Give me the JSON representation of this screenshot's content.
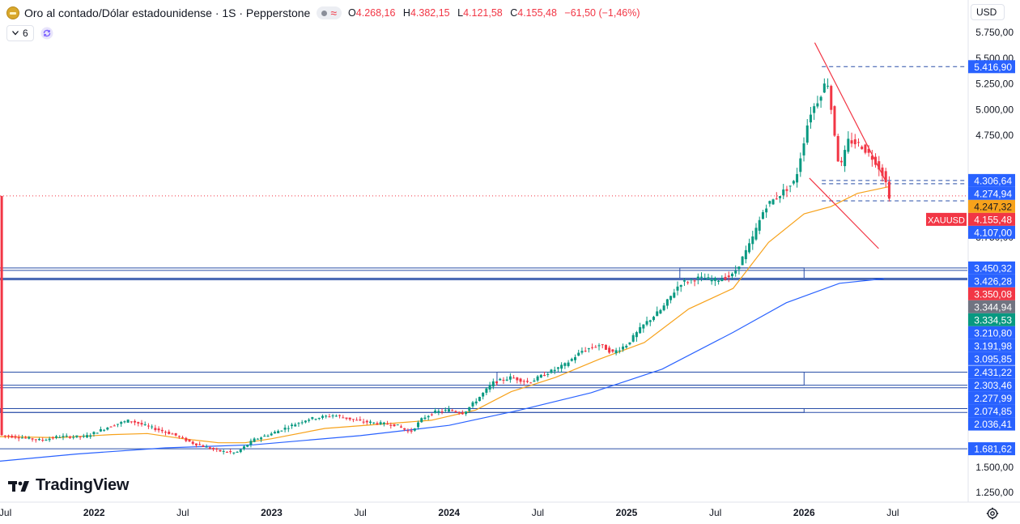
{
  "header": {
    "title": "Oro al contado/Dólar estadounidense · 1S · Pepperstone",
    "market_status_icon": "market-closed-dot-icon",
    "ohlc": {
      "open_label": "O",
      "open_value": "4.268,16",
      "high_label": "H",
      "high_value": "4.382,15",
      "low_label": "L",
      "low_value": "4.121,58",
      "close_label": "C",
      "close_value": "4.155,48",
      "change": "−61,50 (−1,46%)"
    }
  },
  "indicators": {
    "count": "6"
  },
  "currency": "USD",
  "logo_text": "TradingView",
  "colors": {
    "up": "#089981",
    "down": "#f23645",
    "ma_fast": "#f7a21b",
    "ma_slow": "#2962ff",
    "level_line": "#2a4fa8",
    "trend_line": "#f23645",
    "accent": "#2962ff"
  },
  "chart_data": {
    "type": "candlestick",
    "symbol": "XAUUSD",
    "interval": "1S",
    "y_axis": {
      "ylim": [
        1050,
        5950
      ],
      "ticks": [
        "5.750,00",
        "5.500,00",
        "5.250,00",
        "5.000,00",
        "4.750,00",
        "3.750,00",
        "1.500,00",
        "1.250,00"
      ],
      "tick_values": [
        5750,
        5500,
        5250,
        5000,
        4750,
        3750,
        1500,
        1250
      ]
    },
    "x_axis": {
      "labels": [
        "Jul",
        "2022",
        "Jul",
        "2023",
        "Jul",
        "2024",
        "Jul",
        "2025",
        "Jul",
        "2026",
        "Jul"
      ],
      "label_positions": [
        2021.5,
        2022.0,
        2022.5,
        2023.0,
        2023.5,
        2024.0,
        2024.5,
        2025.0,
        2025.5,
        2026.0,
        2026.5
      ],
      "range": [
        2021.47,
        2026.92
      ]
    },
    "price_labels": [
      {
        "text": "5.416,90",
        "value": 5416.9,
        "style": "blue"
      },
      {
        "text": "4.306,64",
        "value": 4306.64,
        "style": "blue"
      },
      {
        "text": "4.274,94",
        "value": 4274.94,
        "style": "blue"
      },
      {
        "text": "4.247,32",
        "value": 4247.32,
        "style": "orange"
      },
      {
        "text": "4.155,48",
        "value": 4155.48,
        "style": "red",
        "tag": "XAUUSD"
      },
      {
        "text": "4.107,00",
        "value": 4107.0,
        "style": "blue"
      },
      {
        "text": "3.450,32",
        "value": 3450.32,
        "style": "blue"
      },
      {
        "text": "3.426,28",
        "value": 3426.28,
        "style": "blue"
      },
      {
        "text": "3.350,08",
        "value": 3350.08,
        "style": "red"
      },
      {
        "text": "3.344,94",
        "value": 3344.94,
        "style": "gray"
      },
      {
        "text": "3.334,53",
        "value": 3334.53,
        "style": "green"
      },
      {
        "text": "3.210,80",
        "value": 3210.8,
        "style": "blue"
      },
      {
        "text": "3.191,98",
        "value": 3191.98,
        "style": "blue"
      },
      {
        "text": "3.095,85",
        "value": 3095.85,
        "style": "blue"
      },
      {
        "text": "2.431,22",
        "value": 2431.22,
        "style": "blue"
      },
      {
        "text": "2.303,46",
        "value": 2303.46,
        "style": "blue"
      },
      {
        "text": "2.277,99",
        "value": 2277.99,
        "style": "blue"
      },
      {
        "text": "2.074,85",
        "value": 2074.85,
        "style": "blue"
      },
      {
        "text": "2.036,41",
        "value": 2036.41,
        "style": "blue"
      },
      {
        "text": "1.681,62",
        "value": 1681.62,
        "style": "blue"
      }
    ],
    "series": [
      {
        "kind": "price",
        "points": [
          [
            2021.47,
            1815
          ],
          [
            2021.6,
            1790
          ],
          [
            2021.7,
            1765
          ],
          [
            2021.8,
            1800
          ],
          [
            2021.95,
            1800
          ],
          [
            2022.1,
            1910
          ],
          [
            2022.2,
            1960
          ],
          [
            2022.3,
            1900
          ],
          [
            2022.45,
            1820
          ],
          [
            2022.55,
            1740
          ],
          [
            2022.7,
            1660
          ],
          [
            2022.8,
            1640
          ],
          [
            2022.9,
            1770
          ],
          [
            2023.0,
            1830
          ],
          [
            2023.1,
            1900
          ],
          [
            2023.2,
            1970
          ],
          [
            2023.35,
            2010
          ],
          [
            2023.5,
            1950
          ],
          [
            2023.6,
            1930
          ],
          [
            2023.7,
            1915
          ],
          [
            2023.78,
            1840
          ],
          [
            2023.85,
            1980
          ],
          [
            2023.92,
            2040
          ],
          [
            2024.0,
            2060
          ],
          [
            2024.08,
            2030
          ],
          [
            2024.15,
            2150
          ],
          [
            2024.25,
            2330
          ],
          [
            2024.35,
            2380
          ],
          [
            2024.45,
            2330
          ],
          [
            2024.55,
            2420
          ],
          [
            2024.65,
            2500
          ],
          [
            2024.75,
            2640
          ],
          [
            2024.85,
            2700
          ],
          [
            2024.92,
            2620
          ],
          [
            2025.0,
            2700
          ],
          [
            2025.1,
            2900
          ],
          [
            2025.2,
            3050
          ],
          [
            2025.3,
            3300
          ],
          [
            2025.4,
            3350
          ],
          [
            2025.5,
            3330
          ],
          [
            2025.6,
            3380
          ],
          [
            2025.7,
            3700
          ],
          [
            2025.78,
            4050
          ],
          [
            2025.85,
            4150
          ],
          [
            2025.95,
            4300
          ],
          [
            2026.03,
            4950
          ],
          [
            2026.08,
            5100
          ],
          [
            2026.13,
            5300
          ],
          [
            2026.2,
            4400
          ],
          [
            2026.25,
            4700
          ],
          [
            2026.32,
            4650
          ],
          [
            2026.4,
            4500
          ],
          [
            2026.45,
            4350
          ],
          [
            2026.48,
            4155
          ]
        ]
      },
      {
        "kind": "ma_fast",
        "points": [
          [
            2021.47,
            1800
          ],
          [
            2021.8,
            1790
          ],
          [
            2022.1,
            1820
          ],
          [
            2022.3,
            1830
          ],
          [
            2022.5,
            1780
          ],
          [
            2022.7,
            1740
          ],
          [
            2022.85,
            1740
          ],
          [
            2023.0,
            1780
          ],
          [
            2023.3,
            1880
          ],
          [
            2023.6,
            1920
          ],
          [
            2023.9,
            1960
          ],
          [
            2024.15,
            2060
          ],
          [
            2024.35,
            2240
          ],
          [
            2024.6,
            2380
          ],
          [
            2024.85,
            2560
          ],
          [
            2025.1,
            2720
          ],
          [
            2025.35,
            3050
          ],
          [
            2025.6,
            3250
          ],
          [
            2025.8,
            3700
          ],
          [
            2026.0,
            3980
          ],
          [
            2026.15,
            4050
          ],
          [
            2026.3,
            4180
          ],
          [
            2026.48,
            4247
          ]
        ]
      },
      {
        "kind": "ma_slow",
        "points": [
          [
            2021.47,
            1560
          ],
          [
            2021.9,
            1630
          ],
          [
            2022.4,
            1690
          ],
          [
            2022.9,
            1720
          ],
          [
            2023.5,
            1810
          ],
          [
            2024.0,
            1910
          ],
          [
            2024.4,
            2060
          ],
          [
            2024.8,
            2230
          ],
          [
            2025.2,
            2460
          ],
          [
            2025.6,
            2820
          ],
          [
            2025.9,
            3110
          ],
          [
            2026.2,
            3300
          ],
          [
            2026.45,
            3345
          ]
        ]
      }
    ],
    "trend_lines": [
      {
        "from": [
          2026.06,
          5650
        ],
        "to": [
          2026.46,
          4300
        ]
      },
      {
        "from": [
          2026.03,
          4330
        ],
        "to": [
          2026.42,
          3640
        ]
      }
    ],
    "annotations": {
      "current_price": 4155.48,
      "horizontal_levels": [
        5416.9,
        4306.64,
        4274.94,
        4107.0,
        3450.32,
        3426.28,
        3350.08,
        3344.94,
        3334.53,
        2431.22,
        2303.46,
        2277.99,
        2074.85,
        2036.41,
        1681.62
      ],
      "zones": [
        {
          "from": 2025.3,
          "to": 2026.0,
          "top": 3450.32,
          "bottom": 3350.08
        },
        {
          "from": 2024.27,
          "to": 2026.0,
          "top": 2431.22,
          "bottom": 2303.46
        },
        {
          "from": 2021.47,
          "to": 2026.0,
          "top": 2074.85,
          "bottom": 2036.41
        }
      ]
    }
  }
}
